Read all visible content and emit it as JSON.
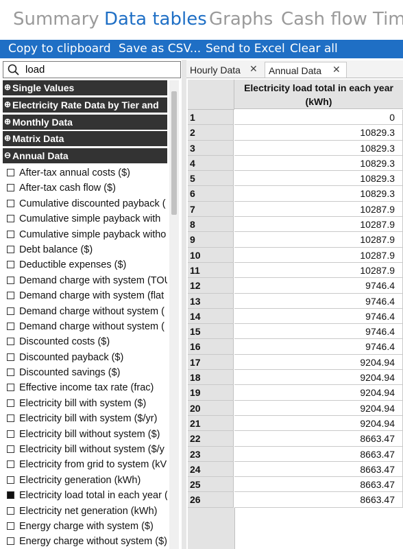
{
  "top_tabs": [
    "Summary",
    "Data tables",
    "Graphs",
    "Cash flow",
    "Tim"
  ],
  "active_top_tab": 1,
  "toolbar": {
    "copy_label": "Copy to clipboard",
    "csv_label": "Save as CSV...",
    "excel_label": "Send to Excel",
    "clear_label": "Clear all"
  },
  "search": {
    "value": "load"
  },
  "groups": [
    {
      "symbol": "⊕",
      "label": "Single Values"
    },
    {
      "symbol": "⊕",
      "label": "Electricity Rate Data by Tier and"
    },
    {
      "symbol": "⊕",
      "label": "Monthly Data"
    },
    {
      "symbol": "⊕",
      "label": "Matrix Data"
    },
    {
      "symbol": "⊖",
      "label": "Annual Data"
    }
  ],
  "annual_items": [
    {
      "label": "After-tax annual costs ($)",
      "checked": false
    },
    {
      "label": "After-tax cash flow ($)",
      "checked": false
    },
    {
      "label": "Cumulative discounted payback (",
      "checked": false
    },
    {
      "label": "Cumulative simple payback with",
      "checked": false
    },
    {
      "label": "Cumulative simple payback witho",
      "checked": false
    },
    {
      "label": "Debt balance ($)",
      "checked": false
    },
    {
      "label": "Deductible expenses ($)",
      "checked": false
    },
    {
      "label": "Demand charge with system (TOU",
      "checked": false
    },
    {
      "label": "Demand charge with system (flat",
      "checked": false
    },
    {
      "label": "Demand charge without system (",
      "checked": false
    },
    {
      "label": "Demand charge without system (",
      "checked": false
    },
    {
      "label": "Discounted costs ($)",
      "checked": false
    },
    {
      "label": "Discounted payback ($)",
      "checked": false
    },
    {
      "label": "Discounted savings ($)",
      "checked": false
    },
    {
      "label": "Effective income tax rate (frac)",
      "checked": false
    },
    {
      "label": "Electricity bill with system ($)",
      "checked": false
    },
    {
      "label": "Electricity bill with system ($/yr)",
      "checked": false
    },
    {
      "label": "Electricity bill without system ($)",
      "checked": false
    },
    {
      "label": "Electricity bill without system ($/y",
      "checked": false
    },
    {
      "label": "Electricity from grid to system (kV",
      "checked": false
    },
    {
      "label": "Electricity generation (kWh)",
      "checked": false
    },
    {
      "label": "Electricity load total in each year (",
      "checked": true
    },
    {
      "label": "Electricity net generation (kWh)",
      "checked": false
    },
    {
      "label": "Energy charge with system ($)",
      "checked": false
    },
    {
      "label": "Energy charge without system ($)",
      "checked": false
    }
  ],
  "data_tabs": [
    {
      "label": "Hourly Data",
      "close": "✕"
    },
    {
      "label": "Annual Data",
      "close": "✕"
    }
  ],
  "active_data_tab": 1,
  "table": {
    "column_header": "Electricity load total in each year (kWh)",
    "rows": [
      {
        "n": "1",
        "v": "0"
      },
      {
        "n": "2",
        "v": "10829.3"
      },
      {
        "n": "3",
        "v": "10829.3"
      },
      {
        "n": "4",
        "v": "10829.3"
      },
      {
        "n": "5",
        "v": "10829.3"
      },
      {
        "n": "6",
        "v": "10829.3"
      },
      {
        "n": "7",
        "v": "10287.9"
      },
      {
        "n": "8",
        "v": "10287.9"
      },
      {
        "n": "9",
        "v": "10287.9"
      },
      {
        "n": "10",
        "v": "10287.9"
      },
      {
        "n": "11",
        "v": "10287.9"
      },
      {
        "n": "12",
        "v": "9746.4"
      },
      {
        "n": "13",
        "v": "9746.4"
      },
      {
        "n": "14",
        "v": "9746.4"
      },
      {
        "n": "15",
        "v": "9746.4"
      },
      {
        "n": "16",
        "v": "9746.4"
      },
      {
        "n": "17",
        "v": "9204.94"
      },
      {
        "n": "18",
        "v": "9204.94"
      },
      {
        "n": "19",
        "v": "9204.94"
      },
      {
        "n": "20",
        "v": "9204.94"
      },
      {
        "n": "21",
        "v": "9204.94"
      },
      {
        "n": "22",
        "v": "8663.47"
      },
      {
        "n": "23",
        "v": "8663.47"
      },
      {
        "n": "24",
        "v": "8663.47"
      },
      {
        "n": "25",
        "v": "8663.47"
      },
      {
        "n": "26",
        "v": "8663.47"
      }
    ]
  },
  "colors": {
    "accent": "#1f6fc5",
    "group_bg": "#333333",
    "header_bg": "#e3e3e3"
  }
}
